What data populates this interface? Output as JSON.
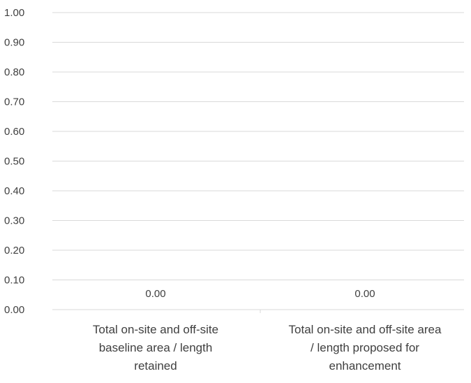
{
  "chart_data": {
    "type": "bar",
    "title": "",
    "xlabel": "",
    "ylabel": "",
    "categories": [
      [
        "Total on-site and off-site",
        "baseline area / length",
        "retained"
      ],
      [
        "Total on-site and off-site area",
        "/ length proposed for",
        "enhancement"
      ]
    ],
    "series": [
      {
        "values": [
          0,
          0
        ],
        "data_labels": [
          "0.00",
          "0.00"
        ]
      }
    ],
    "ylim": [
      0,
      1
    ],
    "y_ticks": [
      "0.00",
      "0.10",
      "0.20",
      "0.30",
      "0.40",
      "0.50",
      "0.60",
      "0.70",
      "0.80",
      "0.90",
      "1.00"
    ],
    "grid": true,
    "legend": "none",
    "colors": {
      "gridline": "#d9d9d9",
      "axis": "#d9d9d9",
      "text": "#3f3f3f"
    }
  }
}
